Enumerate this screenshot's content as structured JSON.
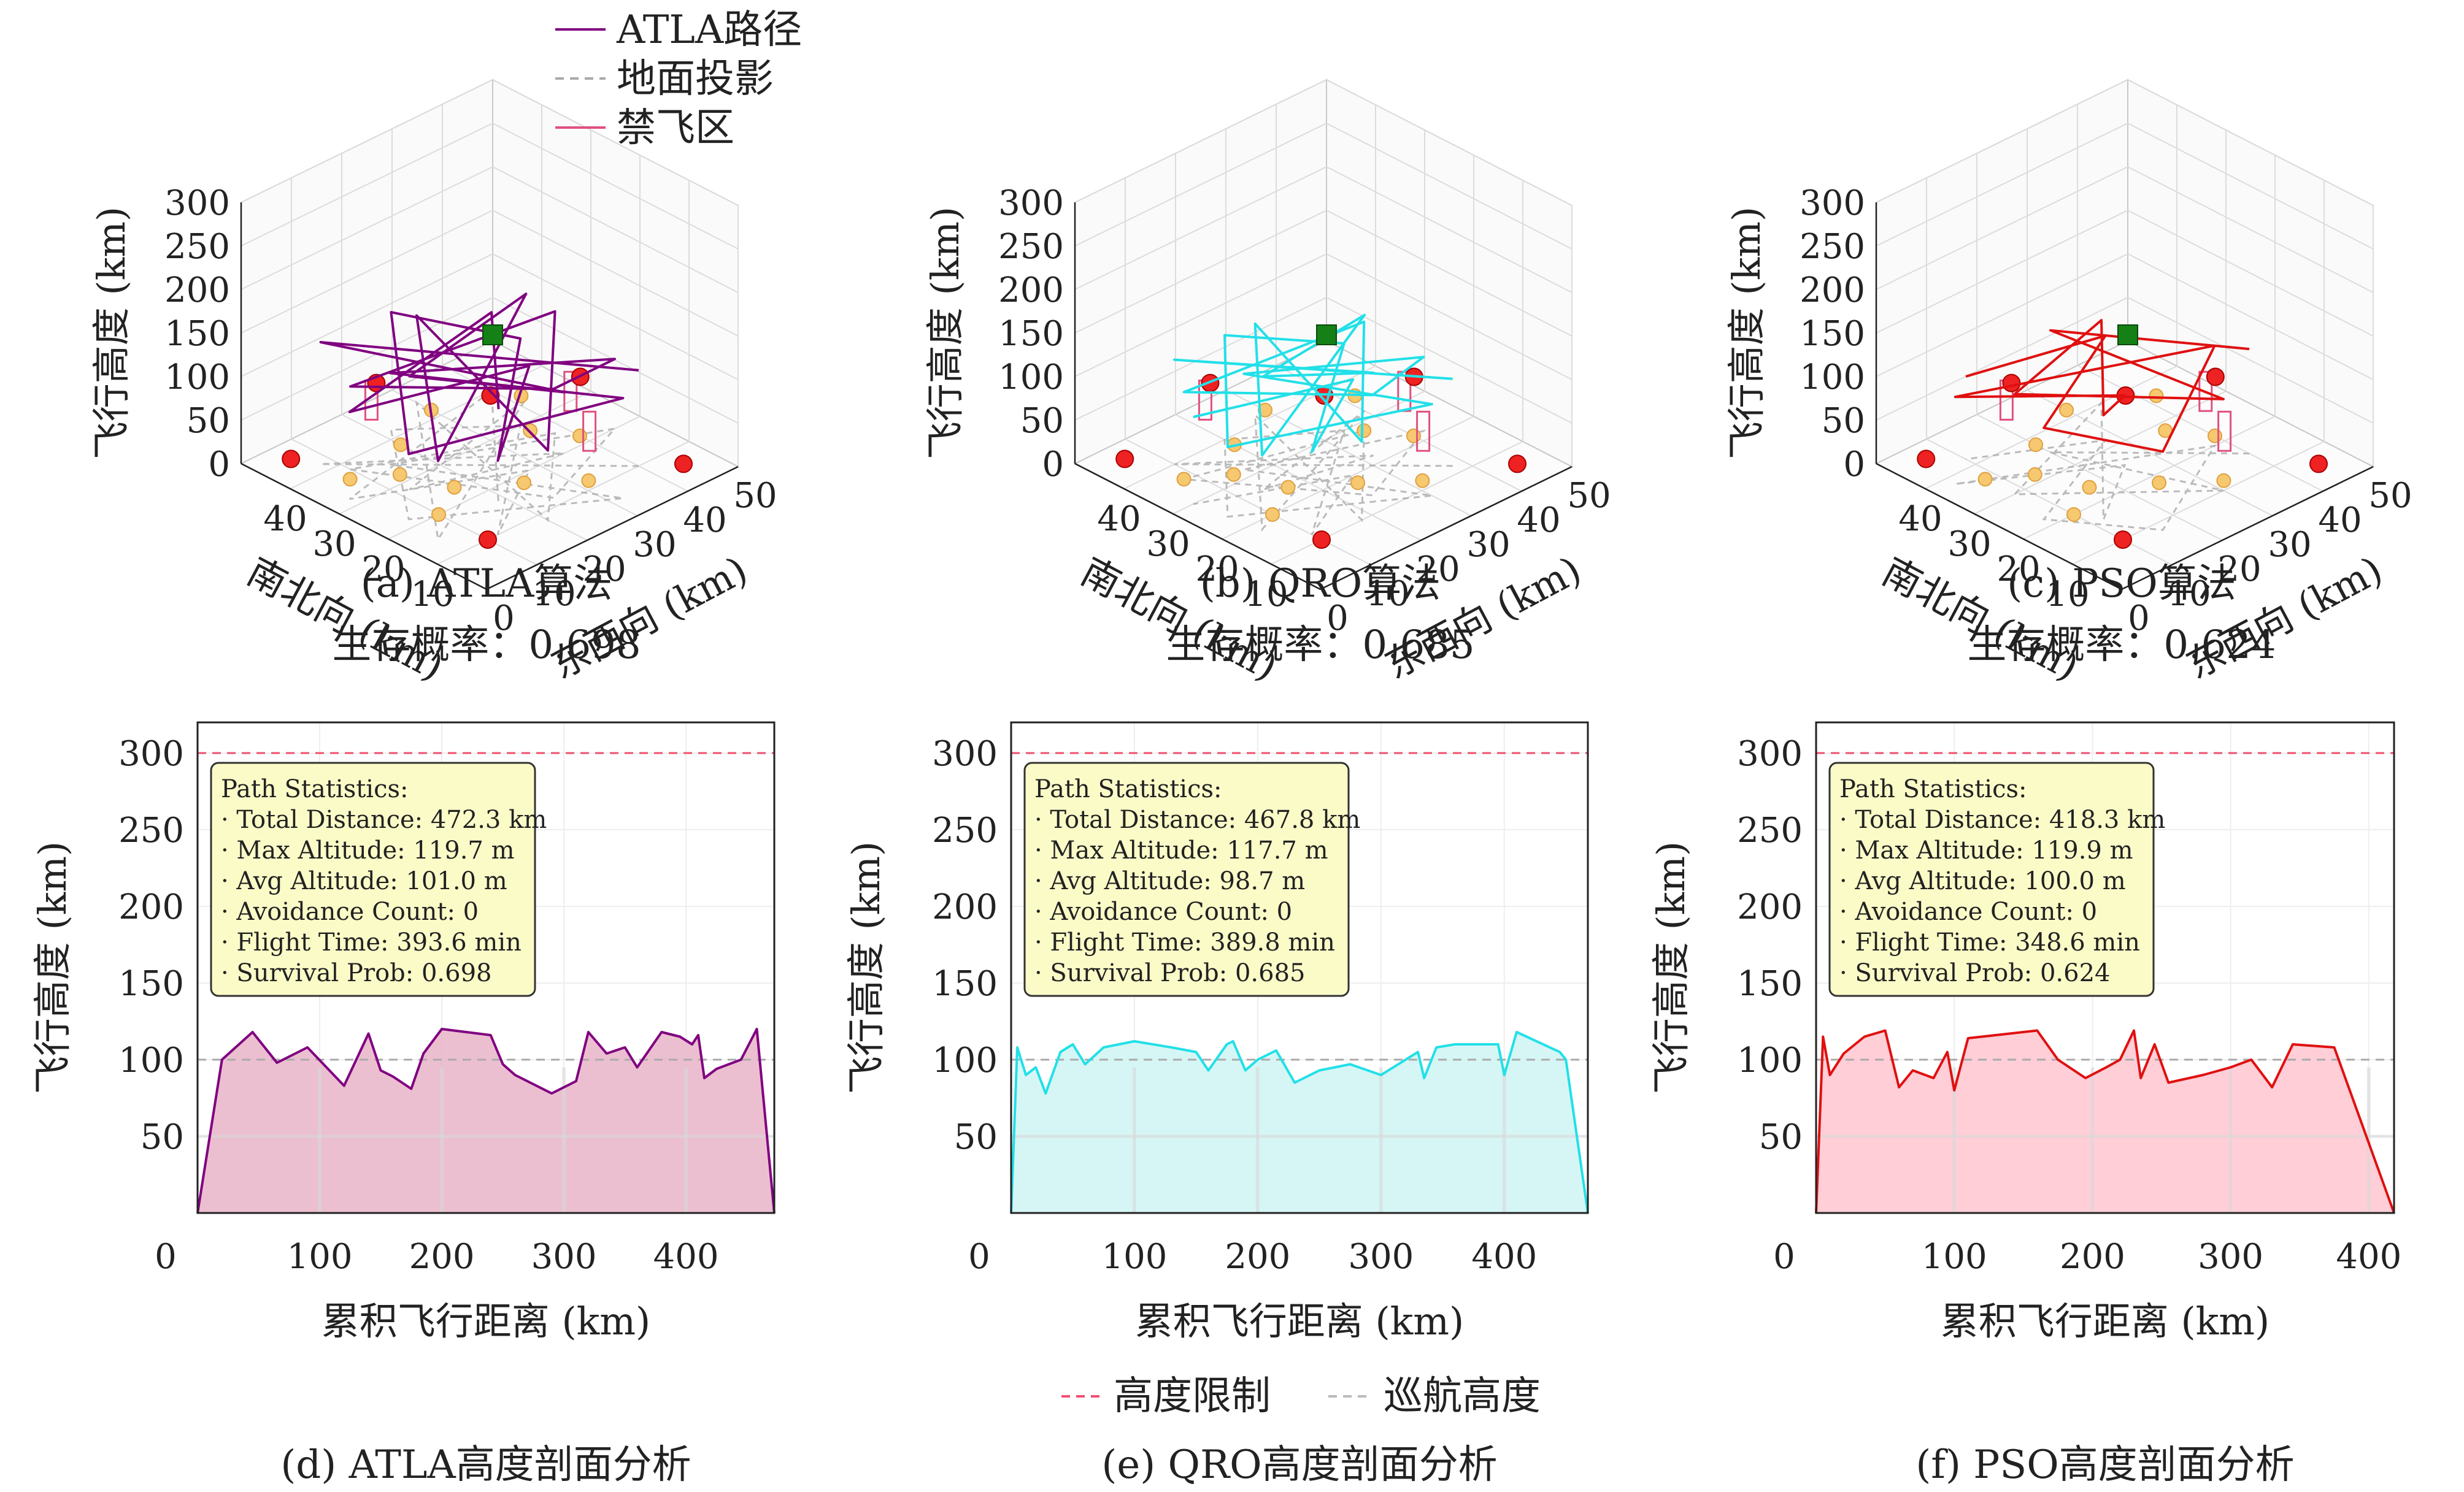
{
  "chart_data": [
    {
      "panel": "a",
      "type": "line",
      "projection": "3d",
      "color": "#800080",
      "caption": "(a) ATLA算法",
      "subcaption": "生存概率：0.698",
      "xlabel": "东西向 (km)",
      "ylabel": "南北向 (km)",
      "zlabel": "飞行高度 (km)",
      "x_ticks": [
        "0",
        "10",
        "20",
        "30",
        "40",
        "50"
      ],
      "y_ticks": [
        "10",
        "20",
        "30",
        "40"
      ],
      "z_ticks": [
        "0",
        "50",
        "100",
        "150",
        "200",
        "250",
        "300"
      ],
      "legend": {
        "position": "top-right",
        "entries": [
          {
            "label": "ATLA路径",
            "color": "#800080",
            "style": "solid"
          },
          {
            "label": "地面投影",
            "color": "#aaaaaa",
            "style": "dashed"
          },
          {
            "label": "禁飞区",
            "color": "#e05080",
            "style": "solid"
          }
        ]
      },
      "path": [
        [
          10,
          40,
          110
        ],
        [
          42,
          8,
          140
        ],
        [
          15,
          30,
          70
        ],
        [
          38,
          22,
          130
        ],
        [
          8,
          15,
          120
        ],
        [
          45,
          35,
          90
        ],
        [
          20,
          5,
          100
        ],
        [
          30,
          42,
          80
        ],
        [
          12,
          25,
          140
        ],
        [
          40,
          12,
          95
        ],
        [
          25,
          38,
          125
        ],
        [
          5,
          30,
          80
        ],
        [
          35,
          15,
          105
        ],
        [
          18,
          45,
          115
        ],
        [
          44,
          28,
          75
        ],
        [
          28,
          8,
          135
        ],
        [
          14,
          20,
          100
        ],
        [
          38,
          40,
          85
        ],
        [
          22,
          30,
          120
        ],
        [
          46,
          18,
          100
        ],
        [
          10,
          10,
          90
        ],
        [
          32,
          34,
          110
        ]
      ]
    },
    {
      "panel": "b",
      "type": "line",
      "projection": "3d",
      "color": "#22e0e8",
      "caption": "(b) QRO算法",
      "subcaption": "生存概率：0.685",
      "xlabel": "东西向 (km)",
      "ylabel": "南北向 (km)",
      "zlabel": "飞行高度 (km)",
      "x_ticks": [
        "0",
        "10",
        "20",
        "30",
        "40",
        "50"
      ],
      "y_ticks": [
        "10",
        "20",
        "30",
        "40"
      ],
      "z_ticks": [
        "0",
        "50",
        "100",
        "150",
        "200",
        "250",
        "300"
      ],
      "path": [
        [
          12,
          38,
          100
        ],
        [
          40,
          10,
          120
        ],
        [
          18,
          28,
          95
        ],
        [
          36,
          24,
          130
        ],
        [
          10,
          18,
          110
        ],
        [
          44,
          32,
          85
        ],
        [
          22,
          8,
          105
        ],
        [
          32,
          40,
          90
        ],
        [
          14,
          22,
          125
        ],
        [
          42,
          14,
          100
        ],
        [
          26,
          36,
          115
        ],
        [
          8,
          28,
          85
        ],
        [
          34,
          18,
          110
        ],
        [
          20,
          42,
          105
        ],
        [
          45,
          26,
          80
        ],
        [
          30,
          10,
          120
        ],
        [
          16,
          20,
          100
        ],
        [
          40,
          38,
          95
        ],
        [
          24,
          30,
          110
        ],
        [
          46,
          20,
          100
        ]
      ]
    },
    {
      "panel": "c",
      "type": "line",
      "projection": "3d",
      "color": "#e01010",
      "caption": "(c) PSO算法",
      "subcaption": "生存概率：0.624",
      "xlabel": "东西向 (km)",
      "ylabel": "南北向 (km)",
      "zlabel": "飞行高度 (km)",
      "x_ticks": [
        "0",
        "10",
        "20",
        "30",
        "40",
        "50"
      ],
      "y_ticks": [
        "10",
        "20",
        "30",
        "40"
      ],
      "z_ticks": [
        "0",
        "50",
        "100",
        "150",
        "200",
        "250",
        "300"
      ],
      "path": [
        [
          10,
          35,
          120
        ],
        [
          30,
          15,
          140
        ],
        [
          20,
          40,
          105
        ],
        [
          42,
          20,
          115
        ],
        [
          15,
          10,
          95
        ],
        [
          38,
          34,
          120
        ],
        [
          25,
          25,
          80
        ],
        [
          46,
          12,
          100
        ],
        [
          12,
          30,
          115
        ],
        [
          34,
          42,
          90
        ],
        [
          44,
          28,
          105
        ],
        [
          22,
          18,
          120
        ],
        [
          40,
          8,
          95
        ]
      ]
    },
    {
      "panel": "d",
      "type": "area",
      "color": "#800080",
      "fill": "#e8b4c8",
      "caption": "(d) ATLA高度剖面分析",
      "xlabel": "累积飞行距离 (km)",
      "ylabel": "飞行高度 (km)",
      "xlim": [
        0,
        472.3
      ],
      "ylim": [
        0,
        320
      ],
      "x_ticks": [
        0,
        100,
        200,
        300,
        400
      ],
      "y_ticks": [
        50,
        100,
        150,
        200,
        250,
        300
      ],
      "altitude_limit": 300,
      "cruise_altitude": 100,
      "stats": [
        "Path Statistics:",
        "· Total Distance: 472.3 km",
        "· Max Altitude: 119.7 m",
        "· Avg Altitude: 101.0 m",
        "· Avoidance Count: 0",
        "· Flight Time: 393.6 min",
        "· Survival Prob: 0.698"
      ],
      "x": [
        0,
        20,
        45,
        65,
        90,
        120,
        140,
        150,
        160,
        175,
        185,
        200,
        220,
        240,
        250,
        260,
        290,
        310,
        320,
        335,
        350,
        360,
        380,
        395,
        405,
        410,
        415,
        425,
        445,
        458,
        472.3
      ],
      "y": [
        0,
        100,
        118,
        98,
        108,
        83,
        117,
        93,
        89,
        81,
        104,
        120,
        118,
        116,
        97,
        90,
        78,
        86,
        118,
        104,
        108,
        95,
        118,
        115,
        110,
        116,
        88,
        94,
        100,
        120,
        0
      ]
    },
    {
      "panel": "e",
      "type": "area",
      "color": "#22e0e8",
      "fill": "#cff5f5",
      "caption": "(e) QRO高度剖面分析",
      "xlabel": "累积飞行距离 (km)",
      "ylabel": "飞行高度 (km)",
      "xlim": [
        0,
        467.8
      ],
      "ylim": [
        0,
        320
      ],
      "x_ticks": [
        0,
        100,
        200,
        300,
        400
      ],
      "y_ticks": [
        50,
        100,
        150,
        200,
        250,
        300
      ],
      "altitude_limit": 300,
      "cruise_altitude": 100,
      "stats": [
        "Path Statistics:",
        "· Total Distance: 467.8 km",
        "· Max Altitude: 117.7 m",
        "· Avg Altitude: 98.7 m",
        "· Avoidance Count: 0",
        "· Flight Time: 389.8 min",
        "· Survival Prob: 0.685"
      ],
      "x": [
        0,
        5,
        12,
        20,
        28,
        40,
        50,
        60,
        75,
        100,
        130,
        150,
        160,
        175,
        180,
        190,
        200,
        215,
        230,
        250,
        275,
        300,
        330,
        335,
        345,
        360,
        395,
        400,
        410,
        445,
        450,
        467.8
      ],
      "y": [
        0,
        108,
        90,
        95,
        78,
        105,
        110,
        97,
        108,
        112,
        108,
        105,
        93,
        110,
        112,
        93,
        100,
        106,
        85,
        93,
        97,
        90,
        105,
        88,
        108,
        110,
        110,
        90,
        118,
        105,
        100,
        0
      ]
    },
    {
      "panel": "f",
      "type": "area",
      "color": "#e01010",
      "fill": "#ffc6d0",
      "caption": "(f) PSO高度剖面分析",
      "xlabel": "累积飞行距离 (km)",
      "ylabel": "飞行高度 (km)",
      "xlim": [
        0,
        418.3
      ],
      "ylim": [
        0,
        320
      ],
      "x_ticks": [
        0,
        100,
        200,
        300,
        400
      ],
      "y_ticks": [
        50,
        100,
        150,
        200,
        250,
        300
      ],
      "altitude_limit": 300,
      "cruise_altitude": 100,
      "stats": [
        "Path Statistics:",
        "· Total Distance: 418.3 km",
        "· Max Altitude: 119.9 m",
        "· Avg Altitude: 100.0 m",
        "· Avoidance Count: 0",
        "· Flight Time: 348.6 min",
        "· Survival Prob: 0.624"
      ],
      "x": [
        0,
        5,
        10,
        20,
        35,
        50,
        60,
        70,
        85,
        95,
        100,
        110,
        140,
        160,
        175,
        195,
        210,
        220,
        230,
        235,
        245,
        255,
        280,
        300,
        315,
        330,
        345,
        375,
        418.3
      ],
      "y": [
        0,
        115,
        90,
        104,
        115,
        119,
        82,
        93,
        88,
        105,
        80,
        114,
        117,
        119,
        100,
        88,
        95,
        100,
        119,
        88,
        110,
        85,
        90,
        95,
        100,
        82,
        110,
        108,
        0
      ]
    }
  ],
  "shared_legend": [
    {
      "label": "高度限制",
      "color": "#f05070",
      "style": "dashed"
    },
    {
      "label": "巡航高度",
      "color": "#bbbbbb",
      "style": "dashed"
    }
  ]
}
